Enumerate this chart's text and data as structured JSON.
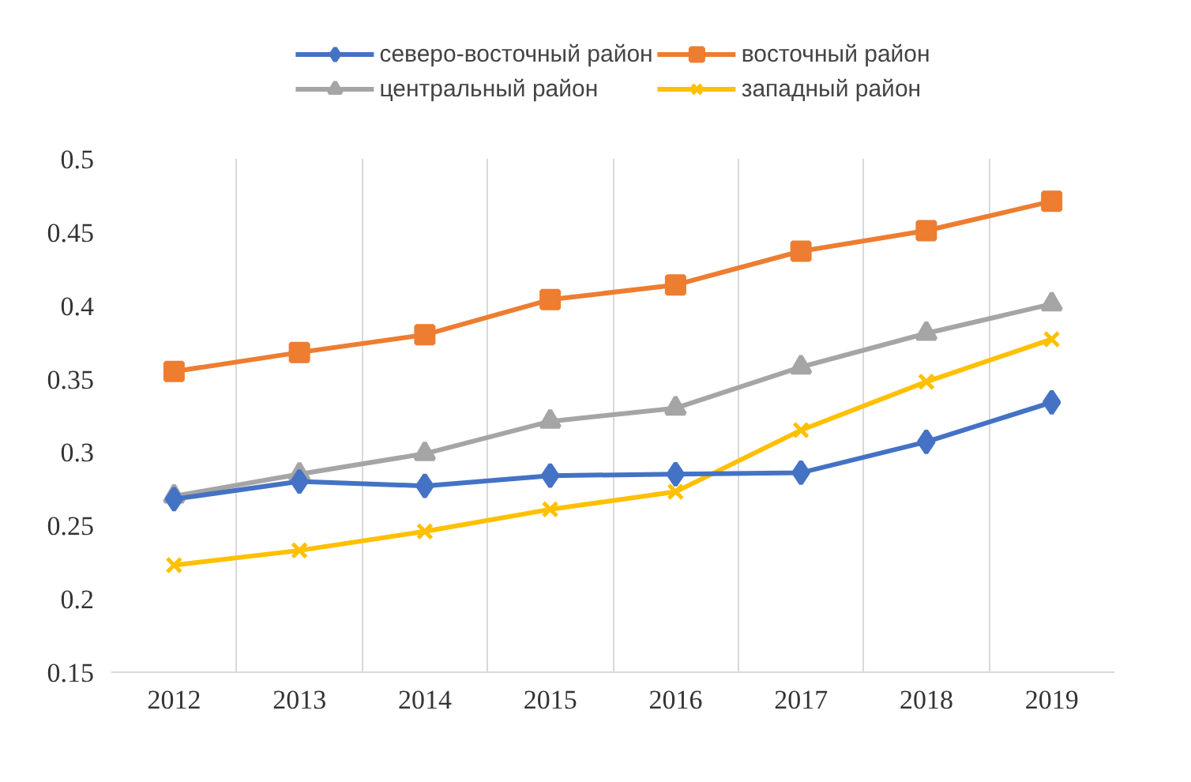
{
  "chart_data": {
    "type": "line",
    "categories": [
      "2012",
      "2013",
      "2014",
      "2015",
      "2016",
      "2017",
      "2018",
      "2019"
    ],
    "ylim": [
      0.15,
      0.5
    ],
    "yticks": [
      0.15,
      0.2,
      0.25,
      0.3,
      0.35,
      0.4,
      0.45,
      0.5
    ],
    "grid": "x",
    "legend": "top",
    "series": [
      {
        "name": "северо-восточный район",
        "color": "#4472c4",
        "marker": "diamond",
        "values": [
          0.268,
          0.28,
          0.277,
          0.284,
          0.285,
          0.286,
          0.307,
          0.334
        ]
      },
      {
        "name": "восточный район",
        "color": "#ed7d31",
        "marker": "square",
        "values": [
          0.355,
          0.368,
          0.38,
          0.404,
          0.414,
          0.437,
          0.451,
          0.471
        ]
      },
      {
        "name": "центральный район",
        "color": "#a5a5a5",
        "marker": "triangle",
        "values": [
          0.27,
          0.285,
          0.299,
          0.321,
          0.33,
          0.358,
          0.381,
          0.401
        ]
      },
      {
        "name": "западный район",
        "color": "#ffc000",
        "marker": "cross",
        "values": [
          0.223,
          0.233,
          0.246,
          0.261,
          0.273,
          0.315,
          0.348,
          0.377
        ]
      }
    ]
  }
}
